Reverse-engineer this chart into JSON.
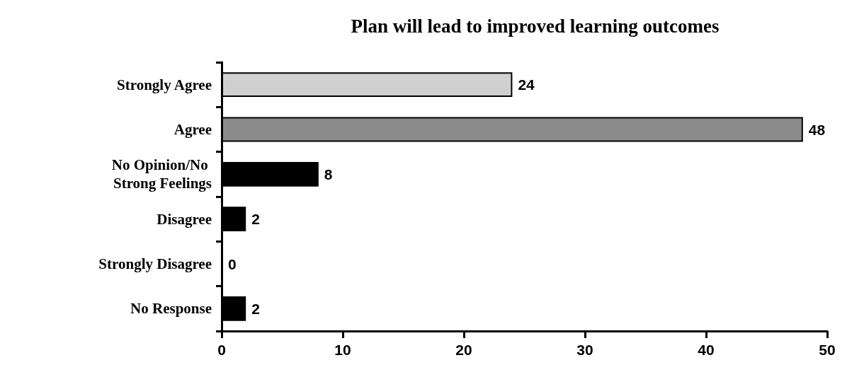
{
  "chart_data": {
    "type": "bar",
    "orientation": "horizontal",
    "title": "Plan will lead to improved learning outcomes",
    "categories": [
      "Strongly Agree",
      "Agree",
      "No Opinion/No Strong Feelings",
      "Disagree",
      "Strongly Disagree",
      "No Response"
    ],
    "values": [
      24,
      48,
      8,
      2,
      0,
      2
    ],
    "colors": [
      "#d0d0d0",
      "#8c8c8c",
      "#000000",
      "#000000",
      "#000000",
      "#000000"
    ],
    "xlim": [
      0,
      50
    ],
    "xticks": [
      0,
      10,
      20,
      30,
      40,
      50
    ],
    "data_labels": true,
    "grid": false
  }
}
